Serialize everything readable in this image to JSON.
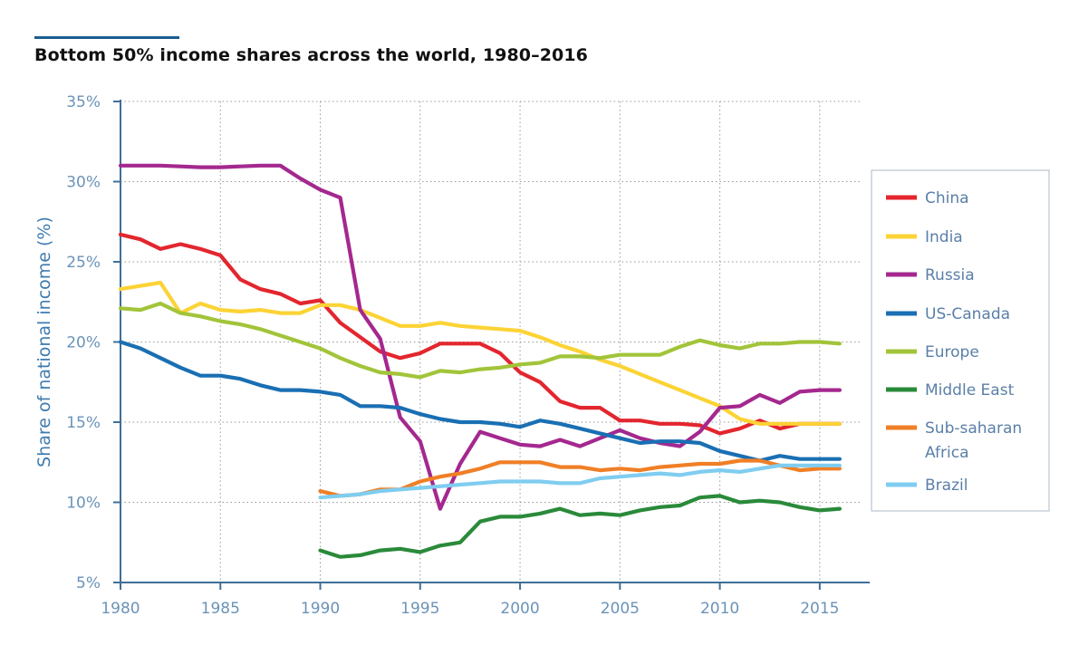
{
  "chart_data": {
    "type": "line",
    "title": "Bottom 50% income shares across the world, 1980–2016",
    "xlabel": "",
    "ylabel": "Share of national income (%)",
    "xlim": [
      1980,
      2017.5
    ],
    "ylim": [
      5,
      35
    ],
    "x_ticks": [
      1980,
      1985,
      1990,
      1995,
      2000,
      2005,
      2010,
      2015
    ],
    "x_tick_labels": [
      "1980",
      "1985",
      "1990",
      "1995",
      "2000",
      "2005",
      "2010",
      "2015"
    ],
    "y_ticks": [
      5,
      10,
      15,
      20,
      25,
      30,
      35
    ],
    "y_tick_labels": [
      "5%",
      "10%",
      "15%",
      "20%",
      "25%",
      "30%",
      "35%"
    ],
    "grid": true,
    "legend_position": "right",
    "series": [
      {
        "name": "China",
        "color": "#e3262e",
        "x_start": 1980,
        "values": [
          26.7,
          26.4,
          25.8,
          26.1,
          25.8,
          25.4,
          23.9,
          23.3,
          23.0,
          22.4,
          22.6,
          21.2,
          20.3,
          19.4,
          19.0,
          19.3,
          19.9,
          19.9,
          19.9,
          19.3,
          18.1,
          17.5,
          16.3,
          15.9,
          15.9,
          15.1,
          15.1,
          14.9,
          14.9,
          14.8,
          14.3,
          14.6,
          15.1,
          14.6,
          14.9,
          14.9,
          14.9
        ]
      },
      {
        "name": "India",
        "color": "#fcd335",
        "x_start": 1980,
        "values": [
          23.3,
          23.5,
          23.7,
          21.8,
          22.4,
          22.0,
          21.9,
          22.0,
          21.8,
          21.8,
          22.3,
          22.3,
          22.0,
          21.5,
          21.0,
          21.0,
          21.2,
          21.0,
          20.9,
          20.8,
          20.7,
          20.3,
          19.8,
          19.4,
          18.9,
          18.5,
          18.0,
          17.5,
          17.0,
          16.5,
          16.0,
          15.2,
          14.9,
          14.9,
          14.9,
          14.9,
          14.9
        ]
      },
      {
        "name": "Russia",
        "color": "#a4288f",
        "x_start": 1980,
        "values": [
          31.0,
          31.0,
          31.0,
          30.95,
          30.9,
          30.9,
          30.95,
          31.0,
          31.0,
          30.2,
          29.5,
          29.0,
          22.0,
          20.2,
          15.3,
          13.8,
          9.6,
          12.4,
          14.4,
          14.0,
          13.6,
          13.5,
          13.9,
          13.5,
          14.0,
          14.5,
          14.0,
          13.7,
          13.5,
          14.4,
          15.9,
          16.0,
          16.7,
          16.2,
          16.9,
          17.0,
          17.0
        ]
      },
      {
        "name": "US-Canada",
        "color": "#1a6fb3",
        "x_start": 1980,
        "values": [
          20.0,
          19.6,
          19.0,
          18.4,
          17.9,
          17.9,
          17.7,
          17.3,
          17.0,
          17.0,
          16.9,
          16.7,
          16.0,
          16.0,
          15.9,
          15.5,
          15.2,
          15.0,
          15.0,
          14.9,
          14.7,
          15.1,
          14.9,
          14.6,
          14.3,
          14.0,
          13.7,
          13.8,
          13.8,
          13.7,
          13.2,
          12.9,
          12.6,
          12.9,
          12.7,
          12.7,
          12.7
        ]
      },
      {
        "name": "Europe",
        "color": "#a2c43a",
        "x_start": 1980,
        "values": [
          22.1,
          22.0,
          22.4,
          21.8,
          21.6,
          21.3,
          21.1,
          20.8,
          20.4,
          20.0,
          19.6,
          19.0,
          18.5,
          18.1,
          18.0,
          17.8,
          18.2,
          18.1,
          18.3,
          18.4,
          18.6,
          18.7,
          19.1,
          19.1,
          19.0,
          19.2,
          19.2,
          19.2,
          19.7,
          20.1,
          19.8,
          19.6,
          19.9,
          19.9,
          20.0,
          20.0,
          19.9
        ]
      },
      {
        "name": "Middle East",
        "color": "#2a8a3a",
        "x_start": 1990,
        "values": [
          7.0,
          6.6,
          6.7,
          7.0,
          7.1,
          6.9,
          7.3,
          7.5,
          8.8,
          9.1,
          9.1,
          9.3,
          9.6,
          9.2,
          9.3,
          9.2,
          9.5,
          9.7,
          9.8,
          10.3,
          10.4,
          10.0,
          10.1,
          10.0,
          9.7,
          9.5,
          9.6
        ]
      },
      {
        "name": "Sub-saharan Africa",
        "color": "#f07f26",
        "x_start": 1990,
        "values": [
          10.7,
          10.4,
          10.5,
          10.8,
          10.8,
          11.3,
          11.6,
          11.8,
          12.1,
          12.5,
          12.5,
          12.5,
          12.2,
          12.2,
          12.0,
          12.1,
          12.0,
          12.2,
          12.3,
          12.4,
          12.4,
          12.6,
          12.6,
          12.3,
          12.0,
          12.1,
          12.1
        ]
      },
      {
        "name": "Brazil",
        "color": "#7fcdf0",
        "x_start": 1990,
        "values": [
          10.3,
          10.4,
          10.5,
          10.7,
          10.8,
          10.9,
          11.0,
          11.1,
          11.2,
          11.3,
          11.3,
          11.3,
          11.2,
          11.2,
          11.5,
          11.6,
          11.7,
          11.8,
          11.7,
          11.9,
          12.0,
          11.9,
          12.1,
          12.3,
          12.3,
          12.3,
          12.3
        ]
      }
    ],
    "legend_entries": [
      "China",
      "India",
      "Russia",
      "US-Canada",
      "Europe",
      "Middle East",
      "Sub-saharan Africa",
      "Brazil"
    ],
    "legend_lines": [
      [
        "China"
      ],
      [
        "India"
      ],
      [
        "Russia"
      ],
      [
        "US-Canada"
      ],
      [
        "Europe"
      ],
      [
        "Middle East"
      ],
      [
        "Sub-saharan",
        "Africa"
      ],
      [
        "Brazil"
      ]
    ]
  }
}
